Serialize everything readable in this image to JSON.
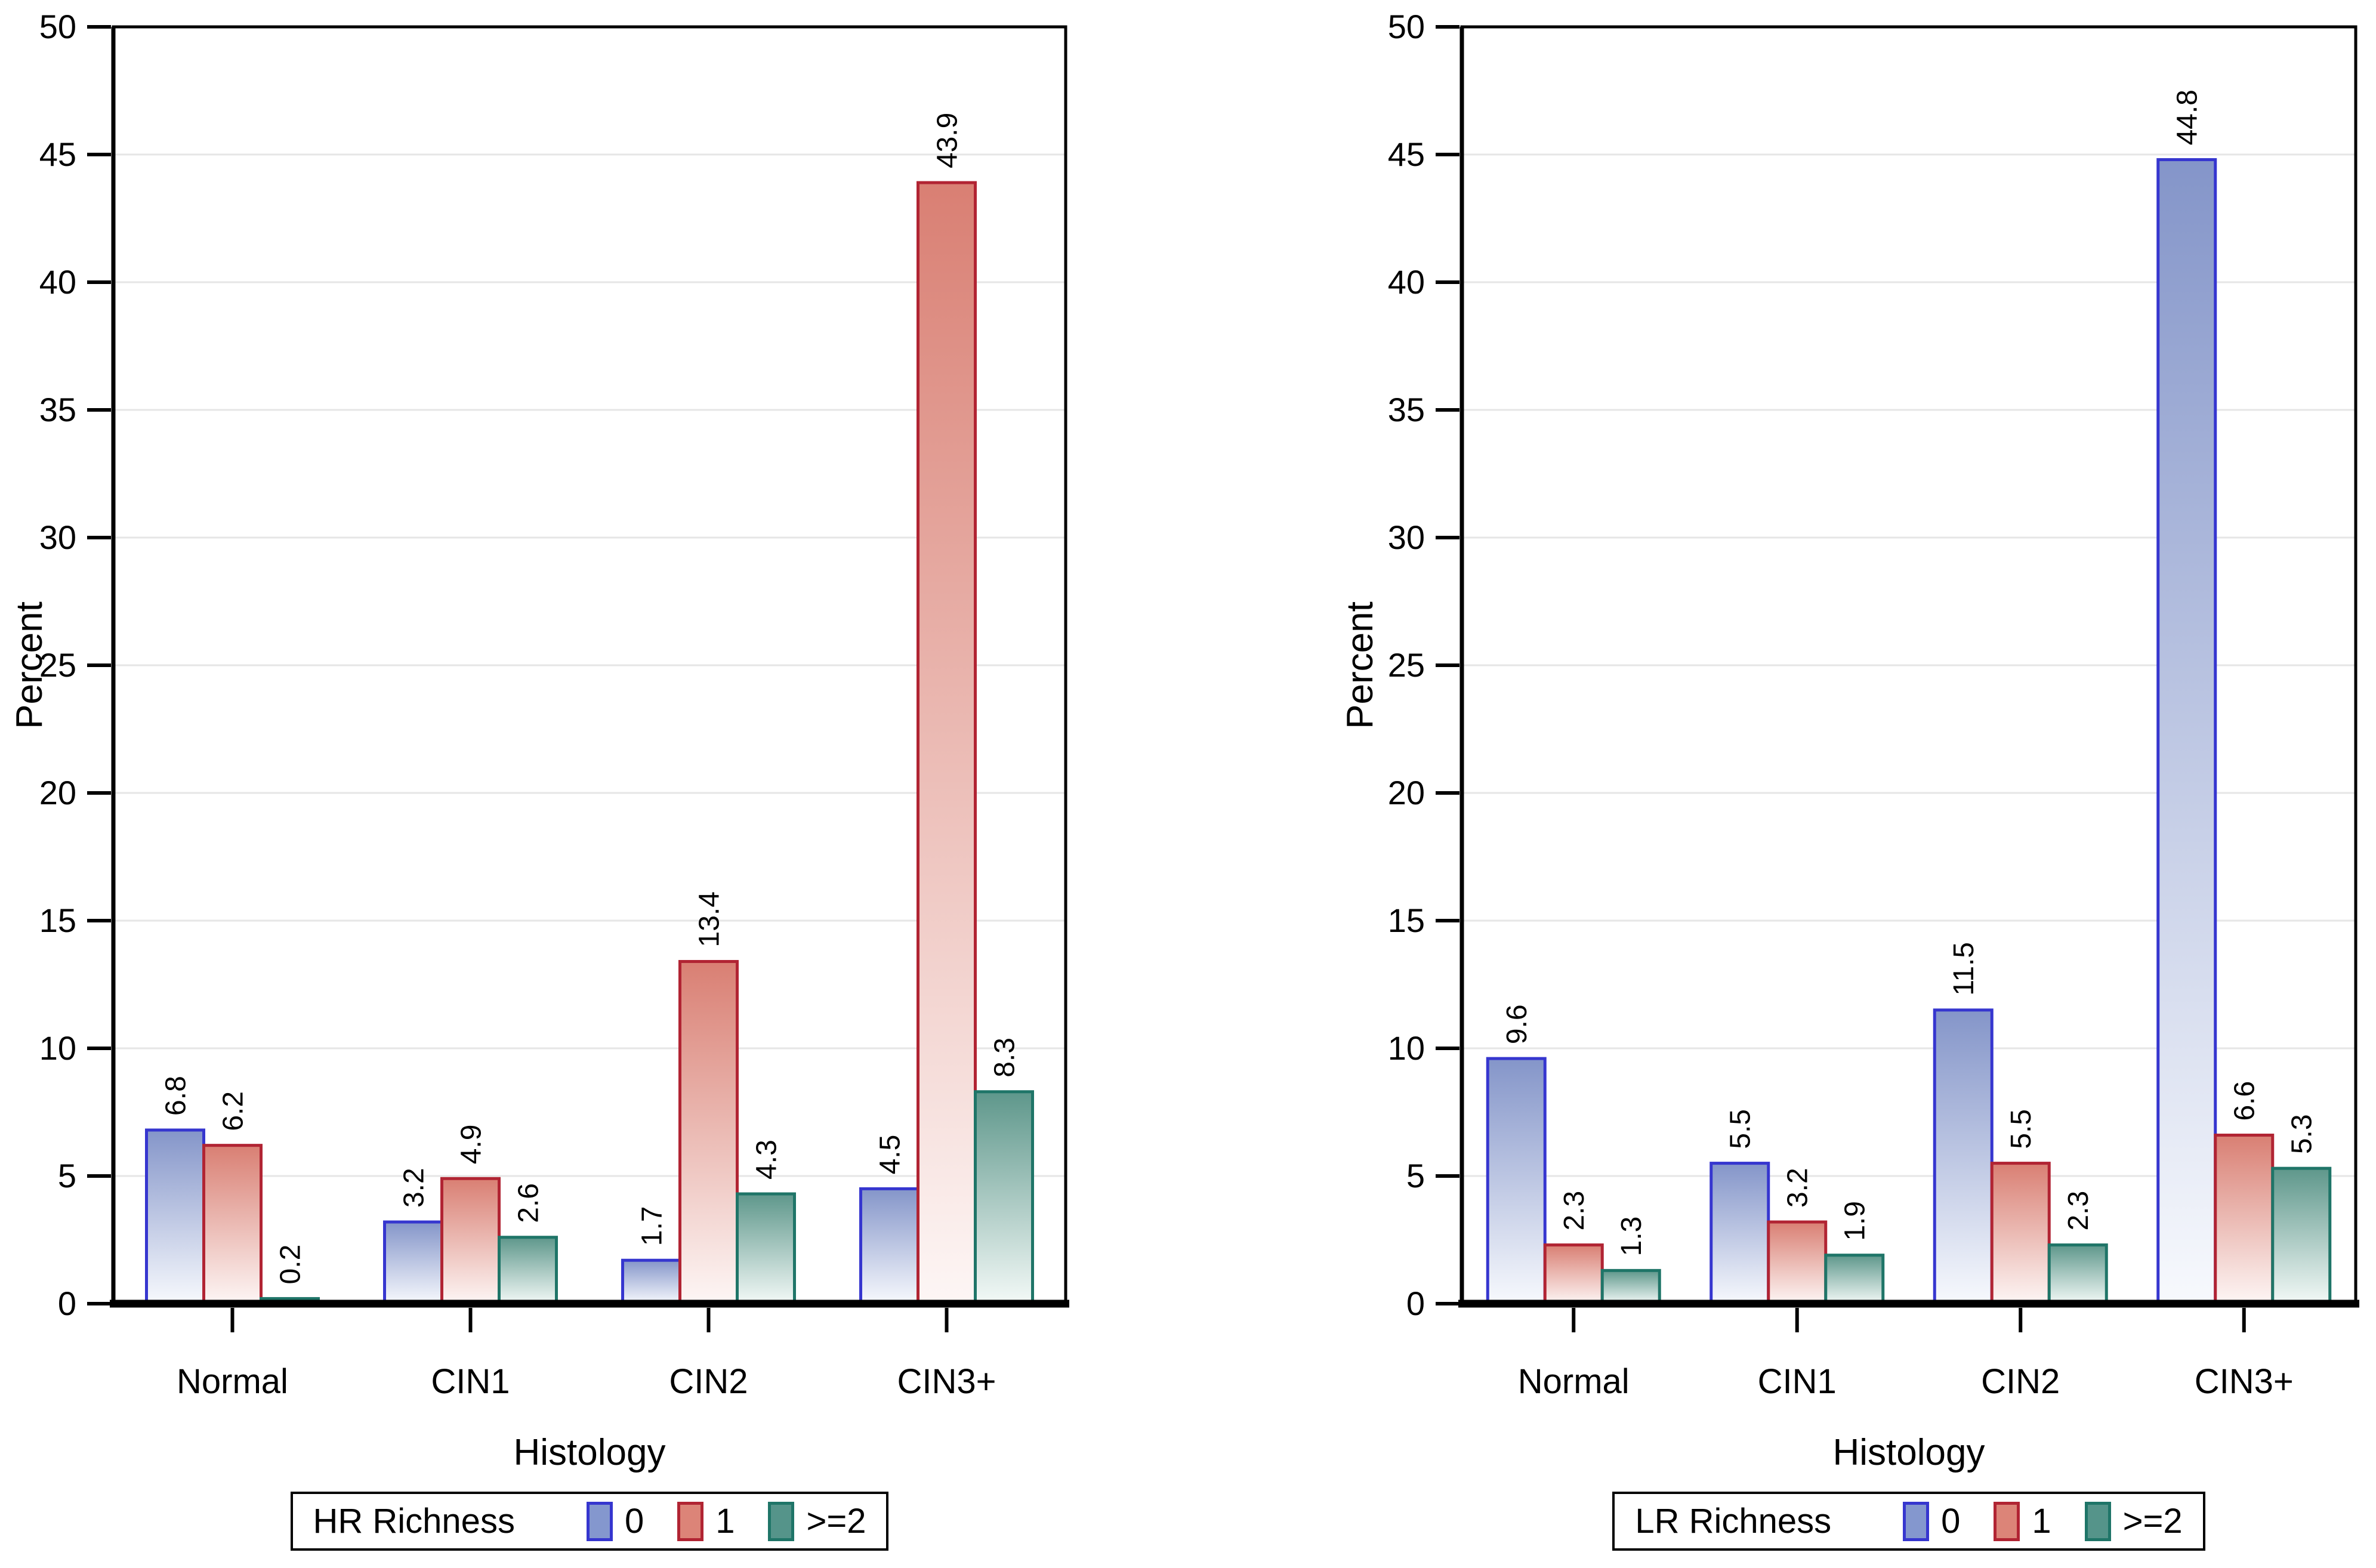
{
  "chart_data": [
    {
      "type": "bar",
      "panel": "left",
      "title": "",
      "legend_title": "HR Richness",
      "legend_position": "bottom",
      "xlabel": "Histology",
      "ylabel": "Percent",
      "ylim": [
        0,
        50
      ],
      "ytick_step": 5,
      "grid": true,
      "value_label_rotation": -90,
      "categories": [
        "Normal",
        "CIN1",
        "CIN2",
        "CIN3+"
      ],
      "series": [
        {
          "name": "0",
          "color": "blue",
          "values": [
            6.8,
            3.2,
            1.7,
            4.5
          ]
        },
        {
          "name": "1",
          "color": "red",
          "values": [
            6.2,
            4.9,
            13.4,
            43.9
          ]
        },
        {
          "name": ">=2",
          "color": "teal",
          "values": [
            0.2,
            2.6,
            4.3,
            8.3
          ]
        }
      ]
    },
    {
      "type": "bar",
      "panel": "right",
      "title": "",
      "legend_title": "LR Richness",
      "legend_position": "bottom",
      "xlabel": "Histology",
      "ylabel": "Percent",
      "ylim": [
        0,
        50
      ],
      "ytick_step": 5,
      "grid": true,
      "value_label_rotation": -90,
      "categories": [
        "Normal",
        "CIN1",
        "CIN2",
        "CIN3+"
      ],
      "series": [
        {
          "name": "0",
          "color": "blue",
          "values": [
            9.6,
            5.5,
            11.5,
            44.8
          ]
        },
        {
          "name": "1",
          "color": "red",
          "values": [
            2.3,
            3.2,
            5.5,
            6.6
          ]
        },
        {
          "name": ">=2",
          "color": "teal",
          "values": [
            1.3,
            1.9,
            2.3,
            5.3
          ]
        }
      ]
    }
  ],
  "colors": {
    "blue": {
      "stroke": "#3636cf",
      "fill_top": "#8495c9",
      "fill_bottom": "#f7f9fd",
      "swatch": "#8497ce"
    },
    "red": {
      "stroke": "#b12433",
      "fill_top": "#d97f73",
      "fill_bottom": "#fdf6f5",
      "swatch": "#dc8478"
    },
    "teal": {
      "stroke": "#1f7568",
      "fill_top": "#5e978b",
      "fill_bottom": "#f3f9f7",
      "swatch": "#55948a"
    }
  },
  "axis": {
    "line_color": "#000000",
    "grid_color": "#e6e6e6"
  }
}
